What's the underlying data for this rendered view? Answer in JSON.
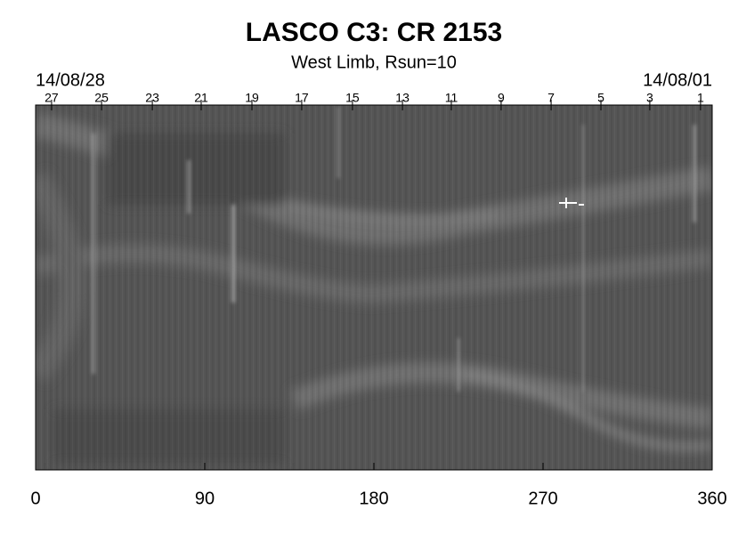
{
  "chart_data": {
    "type": "image",
    "title": "LASCO C3: CR 2153",
    "subtitle": "West Limb, Rsun=10",
    "annotations": [
      "14/08/28",
      "14/08/01"
    ],
    "xlim": [
      0,
      360
    ],
    "xticks": [
      0,
      90,
      180,
      270,
      360
    ],
    "top_ticks": [
      {
        "value": 8.5,
        "label": "27"
      },
      {
        "value": 35.1,
        "label": "25"
      },
      {
        "value": 62.1,
        "label": "23"
      },
      {
        "value": 88.1,
        "label": "21"
      },
      {
        "value": 115.1,
        "label": "19"
      },
      {
        "value": 141.6,
        "label": "17"
      },
      {
        "value": 168.6,
        "label": "15"
      },
      {
        "value": 195.2,
        "label": "13"
      },
      {
        "value": 221.2,
        "label": "11"
      },
      {
        "value": 247.7,
        "label": "9"
      },
      {
        "value": 274.3,
        "label": "7"
      },
      {
        "value": 300.8,
        "label": "5"
      },
      {
        "value": 326.8,
        "label": "3"
      },
      {
        "value": 353.8,
        "label": "1"
      }
    ],
    "colormap": "gray"
  }
}
